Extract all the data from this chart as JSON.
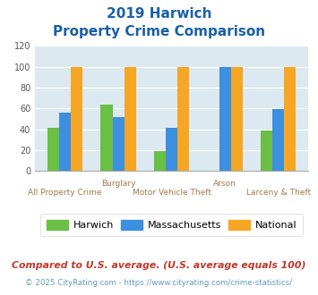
{
  "title_line1": "2019 Harwich",
  "title_line2": "Property Crime Comparison",
  "categories": [
    "All Property Crime",
    "Burglary",
    "Motor Vehicle Theft",
    "Arson",
    "Larceny & Theft"
  ],
  "x_labels_top": [
    "",
    "Burglary",
    "",
    "Arson",
    ""
  ],
  "x_labels_bottom": [
    "All Property Crime",
    "",
    "Motor Vehicle Theft",
    "",
    "Larceny & Theft"
  ],
  "harwich": [
    41,
    64,
    19,
    0,
    39
  ],
  "massachusetts": [
    56,
    52,
    41,
    100,
    59
  ],
  "national": [
    100,
    100,
    100,
    100,
    100
  ],
  "bar_colors": {
    "harwich": "#6abf45",
    "massachusetts": "#3d8fe0",
    "national": "#f5a623"
  },
  "ylim": [
    0,
    120
  ],
  "yticks": [
    0,
    20,
    40,
    60,
    80,
    100,
    120
  ],
  "legend_labels": [
    "Harwich",
    "Massachusetts",
    "National"
  ],
  "footnote1": "Compared to U.S. average. (U.S. average equals 100)",
  "footnote2": "© 2025 CityRating.com - https://www.cityrating.com/crime-statistics/",
  "title_color": "#1a5fa8",
  "footnote1_color": "#c0392b",
  "footnote2_color": "#6699bb",
  "bg_color": "#dce9f0",
  "label_color": "#a07850",
  "tick_color": "#555555"
}
